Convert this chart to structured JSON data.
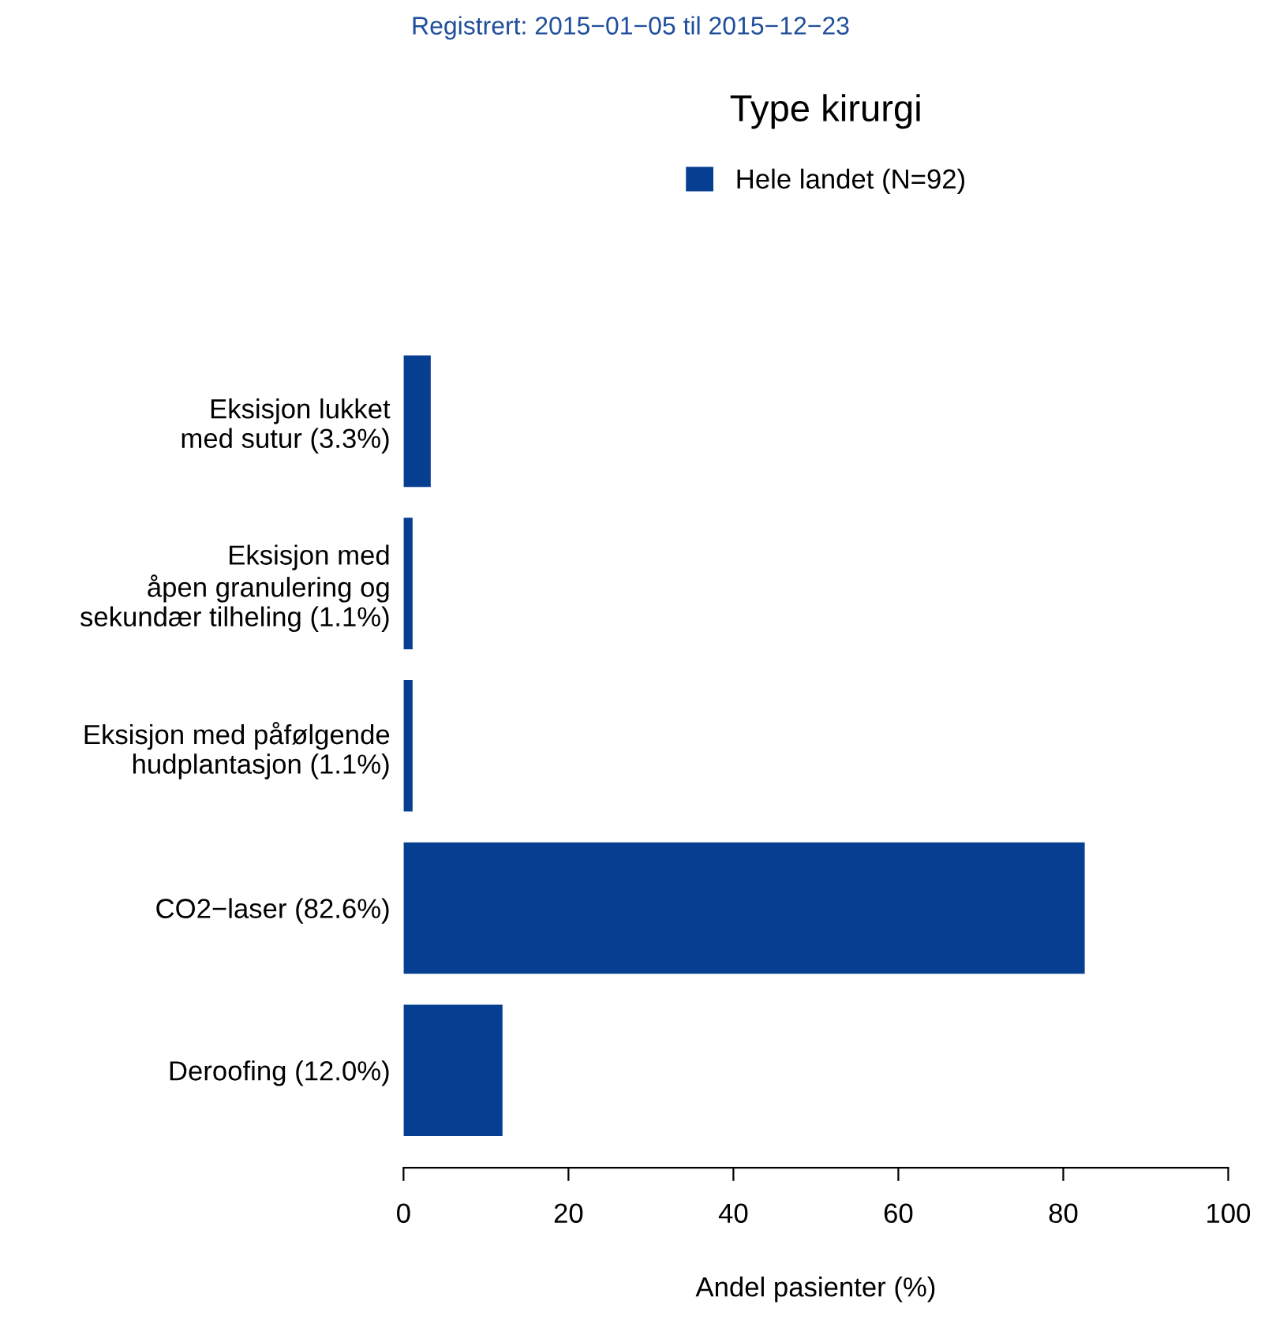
{
  "chart_data": {
    "type": "bar",
    "orientation": "horizontal",
    "title": "Type kirurgi",
    "subtitle": "Registrert: 2015−01−05 til 2015−12−23",
    "xlabel": "Andel pasienter (%)",
    "categories": [
      "Eksisjon lukket\nmed sutur (3.3%)",
      "Eksisjon med\nåpen granulering og\nsekundær tilheling (1.1%)",
      "Eksisjon med påfølgende\nhudplantasjon (1.1%)",
      "CO2−laser (82.6%)",
      "Deroofing (12.0%)"
    ],
    "series": [
      {
        "name": "Hele landet (N=92)",
        "color": "#063e91",
        "values": [
          3.3,
          1.1,
          1.1,
          82.6,
          12.0
        ]
      }
    ],
    "xlim": [
      0,
      100
    ],
    "xticks": [
      0,
      20,
      40,
      60,
      80,
      100
    ],
    "grid": false,
    "legend": "top"
  }
}
